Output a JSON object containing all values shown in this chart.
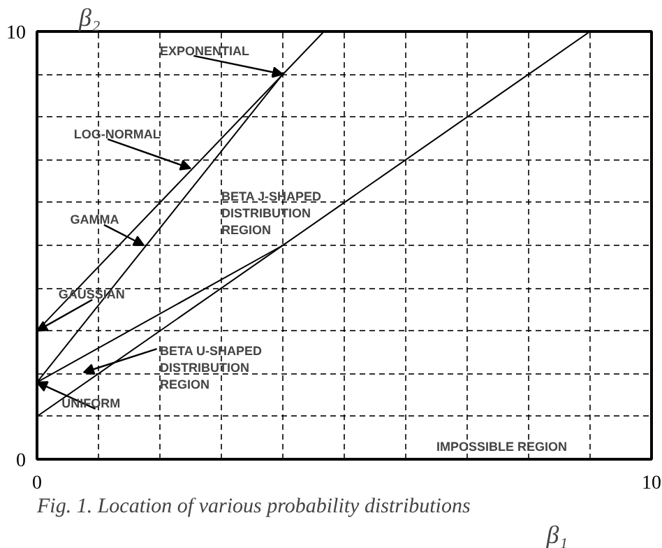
{
  "chart_data": {
    "type": "line",
    "xlabel": "β₁",
    "ylabel": "β₂",
    "xlim": [
      0,
      10
    ],
    "ylim": [
      0,
      10
    ],
    "xticks": [
      0,
      {
        "value": 1,
        "label": null
      },
      {
        "value": 2,
        "label": null
      },
      {
        "value": 3,
        "label": null
      },
      {
        "value": 4,
        "label": null
      },
      {
        "value": 5,
        "label": null
      },
      {
        "value": 6,
        "label": null
      },
      {
        "value": 7,
        "label": null
      },
      {
        "value": 8,
        "label": null
      },
      {
        "value": 9,
        "label": null
      },
      10
    ],
    "yticks": [
      0,
      {
        "value": 1,
        "label": null
      },
      {
        "value": 2,
        "label": null
      },
      {
        "value": 3,
        "label": null
      },
      {
        "value": 4,
        "label": null
      },
      {
        "value": 5,
        "label": null
      },
      {
        "value": 6,
        "label": null
      },
      {
        "value": 7,
        "label": null
      },
      {
        "value": 8,
        "label": null
      },
      {
        "value": 9,
        "label": null
      },
      10
    ],
    "grid": true,
    "line_style": "solid",
    "marker": "none",
    "series": [
      {
        "color": "#000000",
        "x": [
          0,
          4.67
        ],
        "values": [
          3,
          10
        ]
      },
      {
        "color": "#000000",
        "x": [
          0,
          4
        ],
        "values": [
          1.8,
          9
        ]
      },
      {
        "color": "#000000",
        "x": [
          0,
          4
        ],
        "values": [
          1.8,
          5
        ]
      },
      {
        "color": "#000000",
        "x": [
          0,
          9
        ],
        "values": [
          1,
          10
        ]
      }
    ],
    "annotations": [
      {
        "text": "EXPONENTIAL",
        "x": 4,
        "y": 9
      },
      {
        "text": "LOG-NORMAL",
        "x": 2.5,
        "y": 6.8
      },
      {
        "text": "GAMMA",
        "x": 1.74,
        "y": 5.0
      },
      {
        "text": "GAUSSIAN",
        "x": 0,
        "y": 3
      },
      {
        "text": "UNIFORM",
        "x": 0,
        "y": 1.8
      },
      "BETA U-SHAPED\nDISTRIBUTION\nREGION",
      "BETA J-SHAPED\nDISTRIBUTION\nREGION",
      "IMPOSSIBLE REGION",
      "Fig. 1. Location of various probability distributions"
    ]
  }
}
